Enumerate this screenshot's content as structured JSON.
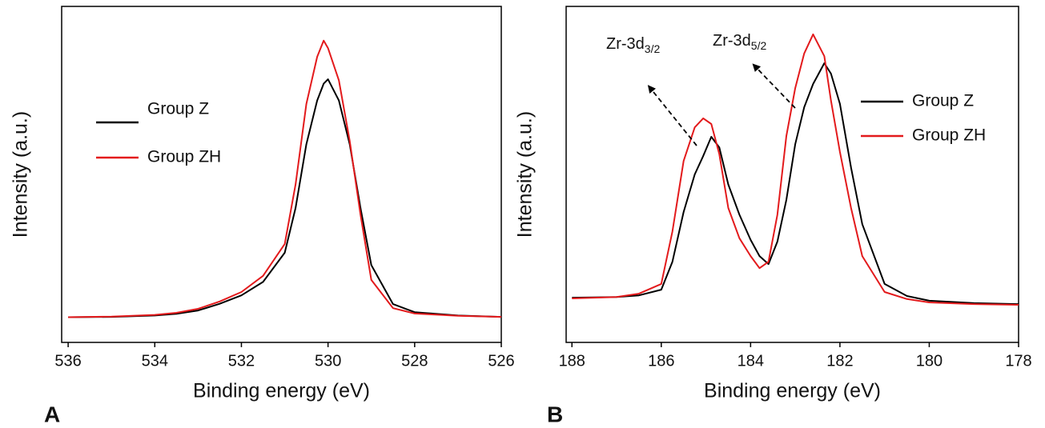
{
  "chart_data": [
    {
      "type": "line",
      "panel": "A",
      "x_label": "Binding energy (eV)",
      "y_label": "Intensity (a.u.)",
      "x": [
        536,
        535,
        534,
        533.5,
        533,
        532.5,
        532,
        531.5,
        531,
        530.75,
        530.5,
        530.25,
        530.1,
        530,
        529.75,
        529.5,
        529.25,
        529,
        528.5,
        528,
        527,
        526
      ],
      "series": [
        {
          "name": "Group Z",
          "color": "#000000",
          "values": [
            7.5,
            7.6,
            8.0,
            8.5,
            9.5,
            11.5,
            14,
            18,
            26.7,
            40,
            59,
            72,
            77,
            78.3,
            72,
            59,
            40,
            23,
            11.4,
            9,
            8,
            7.6
          ]
        },
        {
          "name": "Group ZH",
          "color": "#e31a1c",
          "values": [
            7.5,
            7.7,
            8.2,
            8.8,
            10,
            12.2,
            15,
            19.8,
            29.3,
            47,
            71,
            85,
            89.8,
            87.6,
            78,
            60,
            38,
            18.6,
            10.2,
            8.6,
            7.9,
            7.6
          ]
        }
      ],
      "xlim": [
        536.15,
        526
      ],
      "xticks": [
        536,
        534,
        532,
        530,
        528,
        526
      ],
      "ylim": [
        0,
        100
      ],
      "legend": "upper left"
    },
    {
      "type": "line",
      "panel": "B",
      "x_label": "Binding energy (eV)",
      "y_label": "Intensity (a.u.)",
      "x": [
        188,
        187,
        186.5,
        186,
        185.75,
        185.5,
        185.25,
        185.06,
        184.88,
        184.7,
        184.5,
        184.25,
        184,
        183.8,
        183.6,
        183.4,
        183.2,
        183,
        182.8,
        182.6,
        182.35,
        182.2,
        182,
        181.75,
        181.5,
        181,
        180.5,
        180,
        179,
        178
      ],
      "series": [
        {
          "name": "Group Z",
          "color": "#000000",
          "values": [
            13.3,
            13.5,
            14,
            15.7,
            24,
            38.8,
            50,
            55.5,
            61.2,
            58,
            47,
            38,
            30.5,
            25.7,
            23.3,
            30,
            42.4,
            59,
            70,
            76.9,
            83.1,
            80,
            71,
            52,
            35.2,
            17.4,
            13.8,
            12.4,
            11.7,
            11.4
          ]
        },
        {
          "name": "Group ZH",
          "color": "#e31a1c",
          "values": [
            13.1,
            13.5,
            14.5,
            17.4,
            33,
            54,
            64,
            66.7,
            65,
            56,
            40,
            31,
            25.7,
            22.1,
            24,
            38,
            61.4,
            75.7,
            86,
            91.7,
            85.2,
            72,
            56.7,
            40,
            25.7,
            15,
            12.9,
            11.9,
            11.4,
            11.2
          ]
        }
      ],
      "xlim": [
        188.13,
        178
      ],
      "xticks": [
        188,
        186,
        184,
        182,
        180,
        178
      ],
      "ylim": [
        0,
        100
      ],
      "legend": "upper right",
      "annotations": [
        {
          "text": "Zr-3d",
          "sub": "3/2"
        },
        {
          "text": "Zr-3d",
          "sub": "5/2"
        }
      ]
    }
  ]
}
